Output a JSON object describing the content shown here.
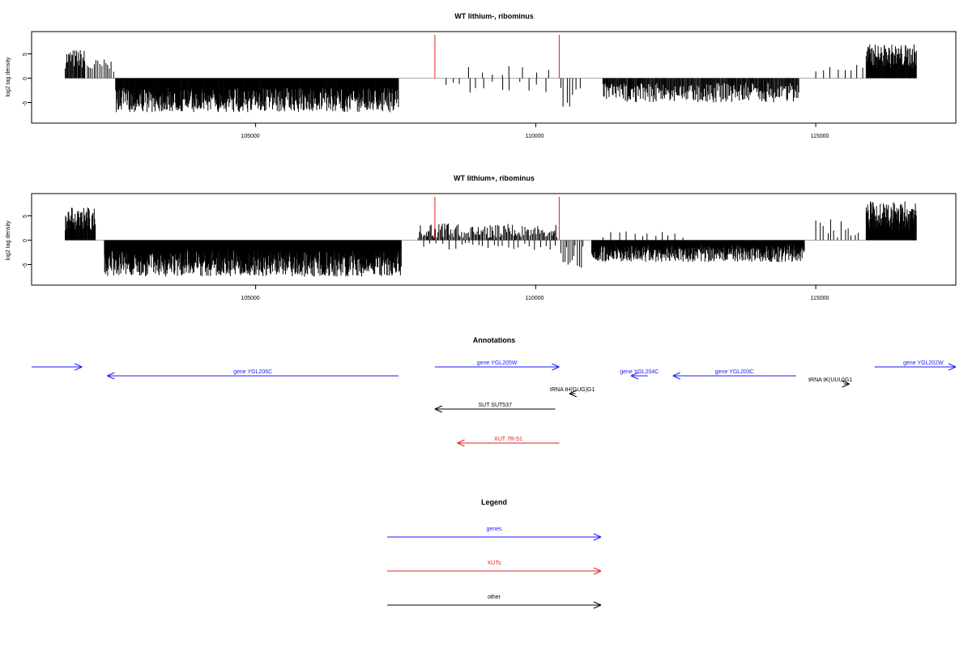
{
  "colors": {
    "axis": "#000000",
    "bars": "#000000",
    "marker": "#e0201e",
    "baseline": "#aaaaaa",
    "gene": "#1a1aff",
    "xut": "#e0201e",
    "other": "#000000"
  },
  "chart_data": [
    {
      "type": "bar",
      "title": "WT lithium-, ribominus",
      "ylabel": "log2 tag density",
      "xlim": [
        101000,
        117500
      ],
      "ylim": [
        -9,
        9
      ],
      "xticks": [
        "105000",
        "110000",
        "115000"
      ],
      "yticks": [
        "5",
        "0",
        "-5"
      ],
      "markers_x": [
        108200,
        110420
      ],
      "segments": [
        {
          "from": 101600,
          "to": 101950,
          "sign": 1,
          "min": 2,
          "max": 6,
          "step": 14
        },
        {
          "from": 101950,
          "to": 102500,
          "sign": 1,
          "min": 1,
          "max": 4,
          "step": 35
        },
        {
          "from": 102500,
          "to": 107550,
          "sign": -1,
          "min": 2,
          "max": 7,
          "step": 8
        },
        {
          "from": 108400,
          "to": 110300,
          "sign": -1,
          "min": 0.5,
          "max": 3,
          "step": 140
        },
        {
          "from": 108800,
          "to": 110300,
          "sign": 1,
          "min": 0.5,
          "max": 2.5,
          "step": 190
        },
        {
          "from": 110450,
          "to": 110800,
          "sign": -1,
          "min": 1,
          "max": 6,
          "step": 55
        },
        {
          "from": 111200,
          "to": 114700,
          "sign": -1,
          "min": 1,
          "max": 5,
          "step": 13
        },
        {
          "from": 115000,
          "to": 115900,
          "sign": 1,
          "min": 1,
          "max": 3,
          "step": 120
        },
        {
          "from": 115900,
          "to": 116800,
          "sign": 1,
          "min": 2,
          "max": 7,
          "step": 9
        }
      ]
    },
    {
      "type": "bar",
      "title": "WT lithium+, ribominus",
      "ylabel": "log2 tag density",
      "xlim": [
        101000,
        117500
      ],
      "ylim": [
        -9,
        9
      ],
      "xticks": [
        "105000",
        "110000",
        "115000"
      ],
      "yticks": [
        "5",
        "0",
        "-5"
      ],
      "markers_x": [
        108200,
        110420
      ],
      "segments": [
        {
          "from": 101600,
          "to": 102150,
          "sign": 1,
          "min": 2,
          "max": 7,
          "step": 9
        },
        {
          "from": 102300,
          "to": 107600,
          "sign": -1,
          "min": 2,
          "max": 7.5,
          "step": 6
        },
        {
          "from": 107900,
          "to": 110400,
          "sign": 1,
          "min": 0.5,
          "max": 3.5,
          "step": 20
        },
        {
          "from": 108000,
          "to": 110400,
          "sign": -1,
          "min": 0.5,
          "max": 2,
          "step": 90
        },
        {
          "from": 110450,
          "to": 110850,
          "sign": -1,
          "min": 1,
          "max": 6,
          "step": 30
        },
        {
          "from": 111000,
          "to": 114800,
          "sign": -1,
          "min": 1,
          "max": 4.5,
          "step": 7
        },
        {
          "from": 111200,
          "to": 112700,
          "sign": 1,
          "min": 0.5,
          "max": 1.8,
          "step": 120
        },
        {
          "from": 115000,
          "to": 115850,
          "sign": 1,
          "min": 0.5,
          "max": 4.5,
          "step": 70
        },
        {
          "from": 115900,
          "to": 116800,
          "sign": 1,
          "min": 2,
          "max": 8,
          "step": 7
        }
      ]
    }
  ],
  "annotations": {
    "title": "Annotations",
    "items": [
      {
        "label": "",
        "kind": "gene",
        "dir": 1,
        "x1": 101000,
        "x2": 101900,
        "row": 0,
        "label_dx": 0
      },
      {
        "label": "gene YGL206C",
        "kind": "gene",
        "dir": -1,
        "x1": 102350,
        "x2": 107550,
        "row": 1,
        "label_dx": 0
      },
      {
        "label": "gene YGL205W",
        "kind": "gene",
        "dir": 1,
        "x1": 108200,
        "x2": 110420,
        "row": 0,
        "label_dx": 0
      },
      {
        "label": "gene YGL204C",
        "kind": "gene",
        "dir": -1,
        "x1": 111700,
        "x2": 112000,
        "row": 1,
        "label_dx": 0
      },
      {
        "label": "gene YGL203C",
        "kind": "gene",
        "dir": -1,
        "x1": 112450,
        "x2": 114650,
        "row": 1,
        "label_dx": 0
      },
      {
        "label": "gene YGL202W",
        "kind": "gene",
        "dir": 1,
        "x1": 116050,
        "x2": 117500,
        "row": 0,
        "label_dx": 10
      },
      {
        "label": "tRNA tH(GUG)G1",
        "kind": "other",
        "dir": -1,
        "x1": 110600,
        "x2": 110710,
        "row": 2,
        "label_dx": 0
      },
      {
        "label": "tRNA tK(UUU)G1",
        "kind": "other",
        "dir": 1,
        "x1": 115500,
        "x2": 115600,
        "row": 3,
        "label_dx": -20
      },
      {
        "label": "SUT SUT537",
        "kind": "other",
        "dir": -1,
        "x1": 108200,
        "x2": 110350,
        "row": 4,
        "label_dx": 0
      },
      {
        "label": "XUT 7R-51",
        "kind": "xut",
        "dir": -1,
        "x1": 108600,
        "x2": 110420,
        "row": 5,
        "label_dx": 0
      }
    ]
  },
  "legend": {
    "title": "Legend",
    "items": [
      {
        "label": "genes",
        "kind": "gene"
      },
      {
        "label": "XUTs",
        "kind": "xut"
      },
      {
        "label": "other",
        "kind": "other"
      }
    ]
  }
}
